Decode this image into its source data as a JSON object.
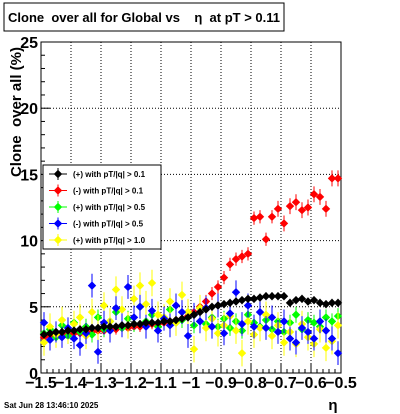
{
  "chart_data": {
    "type": "scatter",
    "title": "Clone  over all for Global vs    η  at pT > 0.11",
    "xlabel": "η",
    "ylabel": "Clone  over all (%)",
    "xlim": [
      -1.5,
      -0.5
    ],
    "ylim": [
      0,
      25
    ],
    "xticks": [
      -1.5,
      -1.4,
      -1.3,
      -1.2,
      -1.1,
      -1,
      -0.9,
      -0.8,
      -0.7,
      -0.6,
      -0.5
    ],
    "xtick_labels": [
      "−1.5",
      "−1.4",
      "−1.3",
      "−1.2",
      "−1.1",
      "−1",
      "−0.9",
      "−0.8",
      "−0.7",
      "−0.6",
      "−0.5"
    ],
    "yticks": [
      0,
      5,
      10,
      15,
      20,
      25
    ],
    "grid": true,
    "legend_position": "left",
    "timestamp": "Sat Jun 28 13:46:10 2025",
    "series": [
      {
        "name": "(+) with pT/|q| > 0.1",
        "color": "#000000",
        "x": [
          -1.49,
          -1.47,
          -1.45,
          -1.43,
          -1.41,
          -1.39,
          -1.37,
          -1.35,
          -1.33,
          -1.31,
          -1.29,
          -1.27,
          -1.25,
          -1.23,
          -1.21,
          -1.19,
          -1.17,
          -1.15,
          -1.13,
          -1.11,
          -1.09,
          -1.07,
          -1.05,
          -1.03,
          -1.01,
          -0.99,
          -0.97,
          -0.95,
          -0.93,
          -0.91,
          -0.89,
          -0.87,
          -0.85,
          -0.83,
          -0.81,
          -0.79,
          -0.77,
          -0.75,
          -0.73,
          -0.71,
          -0.69,
          -0.67,
          -0.65,
          -0.63,
          -0.61,
          -0.59,
          -0.57,
          -0.55,
          -0.53,
          -0.51
        ],
        "y": [
          2.9,
          3.0,
          3.1,
          3.1,
          3.2,
          3.2,
          3.3,
          3.3,
          3.4,
          3.4,
          3.5,
          3.5,
          3.5,
          3.6,
          3.6,
          3.7,
          3.7,
          3.8,
          3.8,
          3.8,
          3.9,
          3.9,
          4.0,
          4.1,
          4.2,
          4.4,
          4.6,
          4.8,
          5.0,
          5.1,
          5.2,
          5.3,
          5.4,
          5.5,
          5.6,
          5.6,
          5.7,
          5.8,
          5.8,
          5.8,
          5.8,
          5.3,
          5.5,
          5.6,
          5.4,
          5.5,
          5.3,
          5.2,
          5.3,
          5.3
        ],
        "err": [
          0.3,
          0.3,
          0.3,
          0.3,
          0.3,
          0.3,
          0.3,
          0.3,
          0.3,
          0.3,
          0.3,
          0.3,
          0.3,
          0.3,
          0.3,
          0.3,
          0.3,
          0.3,
          0.3,
          0.3,
          0.3,
          0.3,
          0.3,
          0.3,
          0.3,
          0.3,
          0.3,
          0.3,
          0.3,
          0.3,
          0.3,
          0.3,
          0.3,
          0.3,
          0.3,
          0.3,
          0.3,
          0.3,
          0.3,
          0.3,
          0.3,
          0.3,
          0.3,
          0.3,
          0.3,
          0.3,
          0.3,
          0.3,
          0.3,
          0.3
        ]
      },
      {
        "name": "(-) with pT/|q| > 0.1",
        "color": "#ff0000",
        "x": [
          -1.49,
          -1.47,
          -1.45,
          -1.43,
          -1.41,
          -1.39,
          -1.37,
          -1.35,
          -1.33,
          -1.31,
          -1.29,
          -1.27,
          -1.25,
          -1.23,
          -1.21,
          -1.19,
          -1.17,
          -1.15,
          -1.13,
          -1.11,
          -1.09,
          -1.07,
          -1.05,
          -1.03,
          -1.01,
          -0.99,
          -0.97,
          -0.95,
          -0.93,
          -0.91,
          -0.89,
          -0.87,
          -0.85,
          -0.83,
          -0.81,
          -0.79,
          -0.77,
          -0.75,
          -0.73,
          -0.71,
          -0.69,
          -0.67,
          -0.65,
          -0.63,
          -0.61,
          -0.59,
          -0.57,
          -0.55,
          -0.53,
          -0.51
        ],
        "y": [
          2.7,
          2.8,
          2.8,
          2.9,
          2.9,
          3.0,
          3.0,
          3.1,
          3.1,
          3.2,
          3.2,
          3.3,
          3.3,
          3.4,
          3.4,
          3.5,
          3.5,
          3.6,
          3.7,
          3.7,
          3.8,
          3.9,
          4.0,
          4.1,
          4.3,
          4.6,
          5.0,
          5.4,
          6.0,
          6.5,
          7.2,
          8.2,
          8.6,
          8.8,
          9.0,
          11.7,
          11.8,
          10.1,
          11.8,
          12.4,
          11.3,
          12.6,
          12.9,
          12.3,
          12.5,
          13.5,
          13.3,
          12.4,
          14.7,
          14.7
        ],
        "err": [
          0.4,
          0.4,
          0.4,
          0.4,
          0.4,
          0.4,
          0.4,
          0.4,
          0.4,
          0.4,
          0.4,
          0.4,
          0.4,
          0.4,
          0.4,
          0.4,
          0.4,
          0.4,
          0.4,
          0.4,
          0.4,
          0.4,
          0.4,
          0.4,
          0.4,
          0.4,
          0.4,
          0.5,
          0.5,
          0.5,
          0.5,
          0.5,
          0.5,
          0.5,
          0.5,
          0.5,
          0.5,
          0.5,
          0.5,
          0.6,
          0.6,
          0.6,
          0.6,
          0.6,
          0.6,
          0.6,
          0.6,
          0.6,
          0.6,
          0.6
        ]
      },
      {
        "name": "(+) with pT/|q| > 0.5",
        "color": "#00ff00",
        "x": [
          -1.49,
          -1.47,
          -1.45,
          -1.43,
          -1.41,
          -1.39,
          -1.37,
          -1.35,
          -1.33,
          -1.31,
          -1.29,
          -1.27,
          -1.25,
          -1.23,
          -1.21,
          -1.19,
          -1.17,
          -1.15,
          -1.13,
          -1.11,
          -1.09,
          -1.07,
          -1.05,
          -1.03,
          -1.01,
          -0.99,
          -0.97,
          -0.95,
          -0.93,
          -0.91,
          -0.89,
          -0.87,
          -0.85,
          -0.83,
          -0.81,
          -0.79,
          -0.77,
          -0.75,
          -0.73,
          -0.71,
          -0.69,
          -0.67,
          -0.65,
          -0.63,
          -0.61,
          -0.59,
          -0.57,
          -0.55,
          -0.53,
          -0.51
        ],
        "y": [
          3.0,
          3.3,
          2.7,
          3.6,
          2.8,
          3.8,
          3.1,
          3.5,
          2.9,
          4.2,
          3.3,
          3.9,
          4.6,
          3.4,
          4.1,
          3.7,
          5.0,
          3.9,
          4.4,
          3.5,
          4.2,
          4.8,
          3.8,
          4.0,
          4.6,
          3.6,
          4.9,
          3.7,
          4.2,
          3.5,
          4.1,
          3.4,
          3.9,
          3.2,
          4.4,
          3.8,
          3.5,
          4.0,
          3.3,
          3.9,
          3.1,
          3.8,
          4.4,
          3.3,
          4.0,
          3.8,
          3.5,
          4.2,
          3.9,
          4.3
        ],
        "err": [
          0.6,
          0.6,
          0.6,
          0.6,
          0.6,
          0.6,
          0.6,
          0.6,
          0.6,
          0.6,
          0.6,
          0.6,
          0.6,
          0.6,
          0.6,
          0.6,
          0.6,
          0.6,
          0.6,
          0.6,
          0.6,
          0.6,
          0.6,
          0.6,
          0.6,
          0.6,
          0.6,
          0.6,
          0.6,
          0.6,
          0.6,
          0.6,
          0.6,
          0.6,
          0.6,
          0.6,
          0.6,
          0.6,
          0.6,
          0.6,
          0.6,
          0.6,
          0.6,
          0.6,
          0.6,
          0.6,
          0.6,
          0.6,
          0.6,
          0.6
        ]
      },
      {
        "name": "(-) with pT/|q| > 0.5",
        "color": "#0000ff",
        "x": [
          -1.49,
          -1.47,
          -1.45,
          -1.43,
          -1.41,
          -1.39,
          -1.37,
          -1.35,
          -1.33,
          -1.31,
          -1.29,
          -1.27,
          -1.25,
          -1.23,
          -1.21,
          -1.19,
          -1.17,
          -1.15,
          -1.13,
          -1.11,
          -1.09,
          -1.07,
          -1.05,
          -1.03,
          -1.01,
          -0.99,
          -0.97,
          -0.95,
          -0.93,
          -0.91,
          -0.89,
          -0.87,
          -0.85,
          -0.83,
          -0.81,
          -0.79,
          -0.77,
          -0.75,
          -0.73,
          -0.71,
          -0.69,
          -0.67,
          -0.65,
          -0.63,
          -0.61,
          -0.59,
          -0.57,
          -0.55,
          -0.53,
          -0.51
        ],
        "y": [
          3.8,
          2.5,
          3.1,
          2.7,
          3.4,
          2.6,
          2.1,
          3.0,
          6.6,
          1.6,
          3.8,
          3.2,
          4.9,
          3.6,
          6.5,
          4.2,
          5.0,
          3.5,
          4.7,
          3.2,
          4.1,
          3.6,
          5.1,
          4.6,
          2.8,
          4.4,
          3.9,
          4.9,
          3.5,
          5.1,
          3.0,
          4.5,
          6.1,
          3.7,
          5.1,
          3.5,
          4.6,
          3.4,
          4.2,
          3.1,
          3.9,
          2.6,
          2.3,
          3.4,
          3.1,
          2.6,
          3.9,
          3.2,
          2.6,
          1.5
        ],
        "err": [
          0.8,
          0.8,
          0.8,
          0.8,
          0.8,
          0.8,
          0.8,
          0.8,
          0.9,
          0.9,
          0.9,
          0.9,
          0.9,
          0.9,
          0.9,
          0.9,
          0.9,
          0.9,
          0.9,
          0.9,
          0.9,
          0.9,
          0.9,
          0.9,
          0.9,
          0.9,
          0.9,
          0.9,
          0.9,
          0.9,
          0.9,
          0.9,
          0.9,
          0.9,
          0.9,
          0.9,
          0.9,
          0.9,
          0.9,
          0.9,
          0.9,
          0.9,
          0.9,
          0.9,
          0.9,
          0.9,
          0.9,
          0.9,
          0.9,
          0.9
        ]
      },
      {
        "name": "(+) with pT/|q| > 1.0",
        "color": "#ffff00",
        "x": [
          -1.49,
          -1.47,
          -1.45,
          -1.43,
          -1.41,
          -1.39,
          -1.37,
          -1.35,
          -1.33,
          -1.31,
          -1.29,
          -1.27,
          -1.25,
          -1.23,
          -1.21,
          -1.19,
          -1.17,
          -1.15,
          -1.13,
          -1.11,
          -1.09,
          -1.07,
          -1.05,
          -1.03,
          -1.01,
          -0.99,
          -0.97,
          -0.95,
          -0.93,
          -0.91,
          -0.89,
          -0.87,
          -0.85,
          -0.83,
          -0.81,
          -0.79,
          -0.77,
          -0.75,
          -0.73,
          -0.71,
          -0.69,
          -0.67,
          -0.65,
          -0.63,
          -0.61,
          -0.59,
          -0.57,
          -0.55,
          -0.53,
          -0.51
        ],
        "y": [
          2.3,
          3.5,
          2.9,
          4.0,
          3.2,
          3.7,
          4.2,
          2.8,
          4.6,
          3.4,
          5.1,
          3.9,
          6.3,
          4.8,
          3.6,
          5.6,
          6.6,
          5.2,
          6.8,
          4.4,
          4.2,
          5.4,
          3.8,
          5.9,
          4.6,
          1.8,
          4.9,
          3.4,
          4.1,
          3.0,
          3.6,
          4.3,
          3.2,
          1.5,
          3.9,
          2.9,
          3.4,
          4.4,
          2.8,
          3.6,
          2.3,
          3.1,
          2.2,
          3.7,
          2.7,
          2.2,
          3.3,
          1.9,
          2.4,
          3.6
        ],
        "err": [
          1.0,
          1.0,
          1.0,
          1.0,
          1.0,
          1.0,
          1.0,
          1.0,
          1.0,
          1.0,
          1.0,
          1.0,
          1.0,
          1.0,
          1.0,
          1.0,
          1.0,
          1.0,
          1.0,
          1.0,
          1.0,
          1.0,
          1.0,
          1.0,
          1.0,
          1.0,
          1.0,
          1.0,
          1.0,
          1.0,
          1.0,
          1.0,
          1.0,
          1.0,
          1.0,
          1.0,
          1.0,
          1.0,
          1.0,
          1.0,
          1.0,
          1.0,
          1.0,
          1.0,
          1.0,
          1.0,
          1.0,
          1.0,
          1.0,
          1.0
        ]
      }
    ]
  }
}
